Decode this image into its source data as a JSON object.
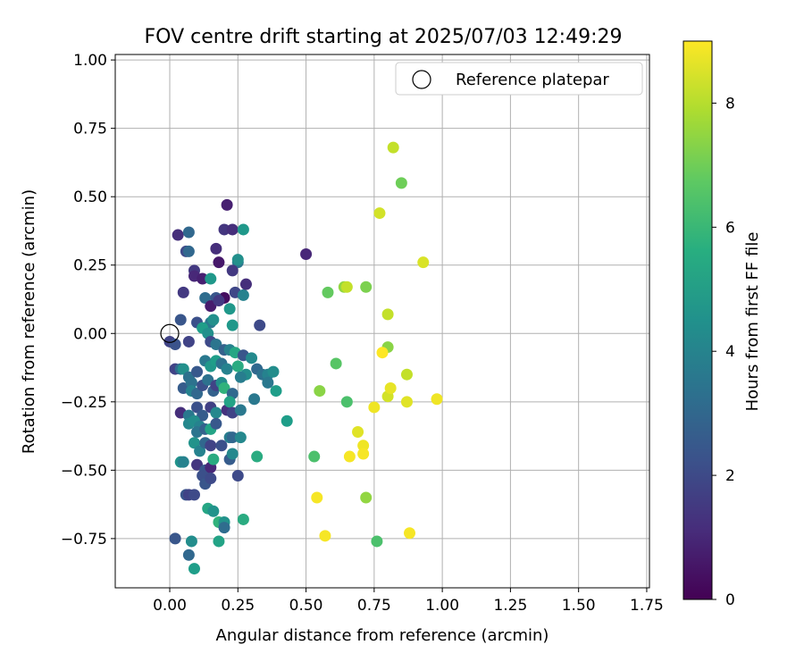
{
  "chart_data": {
    "type": "scatter",
    "title": "FOV centre drift starting at 2025/07/03 12:49:29",
    "xlabel": "Angular distance from reference (arcmin)",
    "ylabel": "Rotation from reference (arcmin)",
    "xlim": [
      -0.2,
      1.76
    ],
    "ylim": [
      -0.93,
      1.02
    ],
    "xticks": [
      "0.00",
      "0.25",
      "0.50",
      "0.75",
      "1.00",
      "1.25",
      "1.50",
      "1.75"
    ],
    "yticks": [
      "−0.75",
      "−0.50",
      "−0.25",
      "0.00",
      "0.25",
      "0.50",
      "0.75",
      "1.00"
    ],
    "grid": true,
    "legend": {
      "position": "top-right",
      "label": "Reference platepar"
    },
    "reference_point": {
      "x": 0.0,
      "y": 0.0
    },
    "colorbar": {
      "label": "Hours from first FF file",
      "colormap": "viridis",
      "range": [
        0,
        9
      ],
      "ticks": [
        "0",
        "2",
        "4",
        "6",
        "8"
      ]
    },
    "points": [
      [
        0.0,
        -0.03,
        1.8
      ],
      [
        0.02,
        -0.04,
        2.3
      ],
      [
        0.04,
        0.05,
        2.4
      ],
      [
        0.07,
        -0.03,
        1.8
      ],
      [
        0.1,
        0.04,
        2.2
      ],
      [
        0.03,
        0.36,
        1.2
      ],
      [
        0.06,
        0.3,
        2.0
      ],
      [
        0.07,
        0.3,
        3.0
      ],
      [
        0.07,
        0.37,
        3.0
      ],
      [
        0.09,
        0.23,
        1.5
      ],
      [
        0.09,
        0.21,
        1.0
      ],
      [
        0.05,
        0.15,
        1.5
      ],
      [
        0.12,
        0.2,
        0.8
      ],
      [
        0.15,
        0.2,
        4.8
      ],
      [
        0.17,
        0.31,
        1.2
      ],
      [
        0.2,
        0.38,
        1.4
      ],
      [
        0.21,
        0.47,
        0.8
      ],
      [
        0.23,
        0.38,
        1.2
      ],
      [
        0.27,
        0.38,
        4.8
      ],
      [
        0.25,
        0.26,
        3.6
      ],
      [
        0.25,
        0.27,
        4.5
      ],
      [
        0.23,
        0.23,
        1.5
      ],
      [
        0.18,
        0.26,
        0.6
      ],
      [
        0.2,
        0.13,
        0.3
      ],
      [
        0.24,
        0.15,
        1.9
      ],
      [
        0.27,
        0.14,
        4.0
      ],
      [
        0.28,
        0.18,
        1.2
      ],
      [
        0.13,
        0.13,
        3.2
      ],
      [
        0.17,
        0.13,
        2.4
      ],
      [
        0.15,
        0.1,
        0.7
      ],
      [
        0.18,
        0.12,
        1.5
      ],
      [
        0.22,
        0.09,
        4.8
      ],
      [
        0.13,
        0.02,
        3.2
      ],
      [
        0.15,
        0.04,
        3.6
      ],
      [
        0.16,
        0.05,
        4.5
      ],
      [
        0.23,
        0.03,
        4.8
      ],
      [
        0.33,
        0.03,
        2.0
      ],
      [
        0.12,
        0.02,
        5.0
      ],
      [
        0.14,
        0.0,
        4.5
      ],
      [
        0.15,
        -0.03,
        2.0
      ],
      [
        0.17,
        -0.04,
        3.5
      ],
      [
        0.2,
        -0.06,
        2.8
      ],
      [
        0.22,
        -0.06,
        4.0
      ],
      [
        0.24,
        -0.07,
        5.3
      ],
      [
        0.27,
        -0.08,
        2.4
      ],
      [
        0.3,
        -0.09,
        4.3
      ],
      [
        0.02,
        -0.13,
        1.8
      ],
      [
        0.04,
        -0.13,
        3.2
      ],
      [
        0.05,
        -0.13,
        4.5
      ],
      [
        0.07,
        -0.16,
        3.4
      ],
      [
        0.1,
        -0.14,
        2.5
      ],
      [
        0.13,
        -0.1,
        3.6
      ],
      [
        0.15,
        -0.12,
        4.8
      ],
      [
        0.17,
        -0.1,
        5.0
      ],
      [
        0.19,
        -0.11,
        3.4
      ],
      [
        0.21,
        -0.13,
        4.0
      ],
      [
        0.25,
        -0.12,
        5.5
      ],
      [
        0.28,
        -0.15,
        4.4
      ],
      [
        0.32,
        -0.13,
        3.0
      ],
      [
        0.34,
        -0.15,
        3.4
      ],
      [
        0.36,
        -0.15,
        4.0
      ],
      [
        0.38,
        -0.14,
        4.4
      ],
      [
        0.05,
        -0.2,
        2.6
      ],
      [
        0.08,
        -0.18,
        3.4
      ],
      [
        0.08,
        -0.21,
        4.0
      ],
      [
        0.1,
        -0.22,
        3.0
      ],
      [
        0.12,
        -0.19,
        2.2
      ],
      [
        0.14,
        -0.17,
        3.4
      ],
      [
        0.16,
        -0.21,
        2.8
      ],
      [
        0.17,
        -0.19,
        1.8
      ],
      [
        0.19,
        -0.18,
        4.4
      ],
      [
        0.2,
        -0.2,
        5.8
      ],
      [
        0.23,
        -0.22,
        3.0
      ],
      [
        0.26,
        -0.16,
        3.8
      ],
      [
        0.36,
        -0.18,
        3.6
      ],
      [
        0.39,
        -0.21,
        5.0
      ],
      [
        0.04,
        -0.29,
        1.2
      ],
      [
        0.07,
        -0.3,
        3.6
      ],
      [
        0.1,
        -0.27,
        2.2
      ],
      [
        0.12,
        -0.3,
        2.6
      ],
      [
        0.15,
        -0.27,
        1.7
      ],
      [
        0.17,
        -0.29,
        4.2
      ],
      [
        0.21,
        -0.28,
        1.3
      ],
      [
        0.22,
        -0.25,
        5.2
      ],
      [
        0.23,
        -0.29,
        1.8
      ],
      [
        0.26,
        -0.28,
        3.6
      ],
      [
        0.31,
        -0.24,
        3.6
      ],
      [
        0.43,
        -0.32,
        5.0
      ],
      [
        0.07,
        -0.33,
        4.2
      ],
      [
        0.09,
        -0.32,
        4.4
      ],
      [
        0.11,
        -0.34,
        4.0
      ],
      [
        0.1,
        -0.36,
        3.5
      ],
      [
        0.13,
        -0.35,
        2.8
      ],
      [
        0.15,
        -0.35,
        5.2
      ],
      [
        0.17,
        -0.33,
        2.5
      ],
      [
        0.09,
        -0.4,
        4.6
      ],
      [
        0.11,
        -0.43,
        4.0
      ],
      [
        0.13,
        -0.4,
        3.0
      ],
      [
        0.15,
        -0.41,
        1.8
      ],
      [
        0.19,
        -0.41,
        2.2
      ],
      [
        0.22,
        -0.38,
        3.8
      ],
      [
        0.23,
        -0.38,
        3.0
      ],
      [
        0.26,
        -0.38,
        4.2
      ],
      [
        0.04,
        -0.47,
        4.6
      ],
      [
        0.05,
        -0.47,
        4.0
      ],
      [
        0.1,
        -0.48,
        1.4
      ],
      [
        0.13,
        -0.5,
        2.4
      ],
      [
        0.15,
        -0.49,
        1.0
      ],
      [
        0.16,
        -0.46,
        5.5
      ],
      [
        0.22,
        -0.46,
        2.6
      ],
      [
        0.23,
        -0.44,
        4.2
      ],
      [
        0.32,
        -0.45,
        5.5
      ],
      [
        0.12,
        -0.52,
        2.2
      ],
      [
        0.13,
        -0.55,
        2.4
      ],
      [
        0.15,
        -0.53,
        2.0
      ],
      [
        0.25,
        -0.52,
        2.0
      ],
      [
        0.06,
        -0.59,
        2.4
      ],
      [
        0.07,
        -0.59,
        1.8
      ],
      [
        0.09,
        -0.59,
        2.0
      ],
      [
        0.14,
        -0.64,
        5.3
      ],
      [
        0.16,
        -0.65,
        4.6
      ],
      [
        0.18,
        -0.69,
        5.8
      ],
      [
        0.2,
        -0.69,
        4.6
      ],
      [
        0.27,
        -0.68,
        5.5
      ],
      [
        0.2,
        -0.71,
        3.2
      ],
      [
        0.02,
        -0.75,
        2.4
      ],
      [
        0.08,
        -0.76,
        4.4
      ],
      [
        0.18,
        -0.76,
        5.2
      ],
      [
        0.07,
        -0.81,
        3.0
      ],
      [
        0.09,
        -0.86,
        5.0
      ],
      [
        0.5,
        0.29,
        1.0
      ],
      [
        0.58,
        0.15,
        6.8
      ],
      [
        0.64,
        0.17,
        7.5
      ],
      [
        0.65,
        0.17,
        8.2
      ],
      [
        0.72,
        0.17,
        7.2
      ],
      [
        0.77,
        0.44,
        8.4
      ],
      [
        0.82,
        0.68,
        8.2
      ],
      [
        0.85,
        0.55,
        7.0
      ],
      [
        0.93,
        0.26,
        8.5
      ],
      [
        0.8,
        0.07,
        8.2
      ],
      [
        0.61,
        -0.11,
        6.6
      ],
      [
        0.8,
        -0.05,
        7.4
      ],
      [
        0.78,
        -0.07,
        9.0
      ],
      [
        0.87,
        -0.15,
        8.2
      ],
      [
        0.55,
        -0.21,
        7.4
      ],
      [
        0.65,
        -0.25,
        6.4
      ],
      [
        0.8,
        -0.23,
        8.4
      ],
      [
        0.81,
        -0.2,
        8.7
      ],
      [
        0.75,
        -0.27,
        8.8
      ],
      [
        0.87,
        -0.25,
        8.6
      ],
      [
        0.98,
        -0.24,
        8.8
      ],
      [
        0.69,
        -0.36,
        8.6
      ],
      [
        0.71,
        -0.41,
        8.8
      ],
      [
        0.71,
        -0.44,
        8.9
      ],
      [
        0.66,
        -0.45,
        8.9
      ],
      [
        0.53,
        -0.45,
        6.4
      ],
      [
        0.54,
        -0.6,
        8.9
      ],
      [
        0.72,
        -0.6,
        7.5
      ],
      [
        0.57,
        -0.74,
        8.9
      ],
      [
        0.76,
        -0.76,
        6.4
      ],
      [
        0.88,
        -0.73,
        8.9
      ]
    ]
  }
}
